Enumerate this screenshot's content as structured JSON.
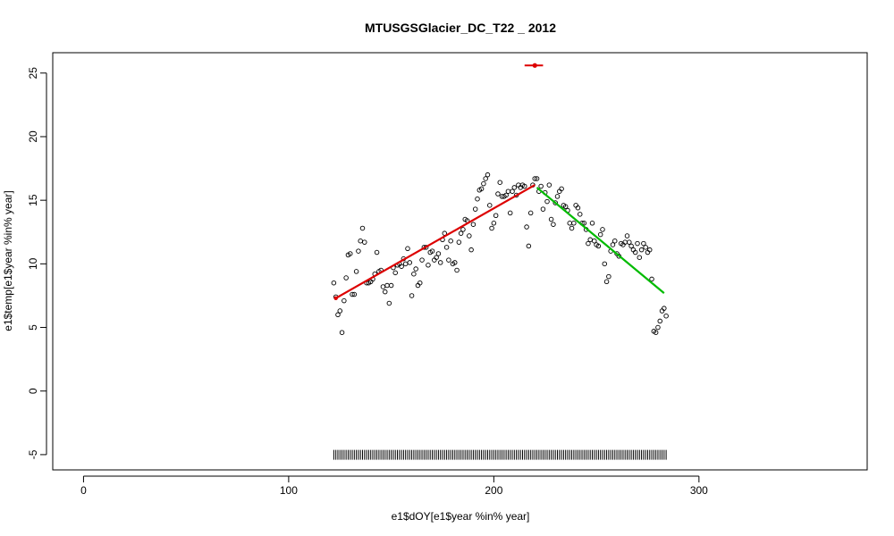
{
  "chart_data": {
    "type": "scatter",
    "title": "MTUSGSGlacier_DC_T22 _ 2012",
    "xlabel": "e1$dOY[e1$year %in% year]",
    "ylabel": "e1$temp[e1$year %in% year]",
    "xlim": [
      -15,
      382
    ],
    "ylim": [
      -6.2,
      26.6
    ],
    "x_ticks": [
      0,
      100,
      200,
      300
    ],
    "y_ticks": [
      -5,
      0,
      5,
      10,
      15,
      20,
      25
    ],
    "grid": false,
    "colors": {
      "points": "#000000",
      "fit_rising": "#dd0000",
      "fit_falling": "#00bb00",
      "peak_marker": "#dd0000",
      "rug": "#000000"
    },
    "series": [
      {
        "marker": "open-circle",
        "points": [
          [
            122,
            8.5
          ],
          [
            123,
            7.4
          ],
          [
            124,
            6.0
          ],
          [
            125,
            6.3
          ],
          [
            126,
            4.6
          ],
          [
            127,
            7.1
          ],
          [
            128,
            8.9
          ],
          [
            129,
            10.7
          ],
          [
            130,
            10.8
          ],
          [
            131,
            7.6
          ],
          [
            132,
            7.6
          ],
          [
            133,
            9.4
          ],
          [
            134,
            11.0
          ],
          [
            135,
            11.8
          ],
          [
            136,
            12.8
          ],
          [
            137,
            11.7
          ],
          [
            138,
            8.5
          ],
          [
            139,
            8.5
          ],
          [
            140,
            8.6
          ],
          [
            141,
            8.8
          ],
          [
            142,
            9.2
          ],
          [
            143,
            10.9
          ],
          [
            144,
            9.4
          ],
          [
            145,
            9.5
          ],
          [
            146,
            8.2
          ],
          [
            147,
            7.8
          ],
          [
            148,
            8.3
          ],
          [
            149,
            6.9
          ],
          [
            150,
            8.3
          ],
          [
            151,
            9.7
          ],
          [
            152,
            9.3
          ],
          [
            153,
            9.9
          ],
          [
            154,
            10.0
          ],
          [
            155,
            9.8
          ],
          [
            156,
            10.4
          ],
          [
            157,
            10.0
          ],
          [
            158,
            11.2
          ],
          [
            159,
            10.1
          ],
          [
            160,
            7.5
          ],
          [
            161,
            9.2
          ],
          [
            162,
            9.6
          ],
          [
            163,
            8.3
          ],
          [
            164,
            8.5
          ],
          [
            165,
            10.3
          ],
          [
            166,
            11.3
          ],
          [
            167,
            11.3
          ],
          [
            168,
            9.9
          ],
          [
            169,
            10.9
          ],
          [
            170,
            11.0
          ],
          [
            171,
            10.3
          ],
          [
            172,
            10.5
          ],
          [
            173,
            10.8
          ],
          [
            174,
            10.1
          ],
          [
            175,
            11.9
          ],
          [
            176,
            12.4
          ],
          [
            177,
            11.3
          ],
          [
            178,
            10.3
          ],
          [
            179,
            11.8
          ],
          [
            180,
            10.0
          ],
          [
            181,
            10.1
          ],
          [
            182,
            9.5
          ],
          [
            183,
            11.7
          ],
          [
            184,
            12.4
          ],
          [
            185,
            12.7
          ],
          [
            186,
            13.5
          ],
          [
            187,
            13.4
          ],
          [
            188,
            12.2
          ],
          [
            189,
            11.1
          ],
          [
            190,
            13.1
          ],
          [
            191,
            14.3
          ],
          [
            192,
            15.1
          ],
          [
            193,
            15.8
          ],
          [
            194,
            15.9
          ],
          [
            195,
            16.3
          ],
          [
            196,
            16.7
          ],
          [
            197,
            17.0
          ],
          [
            198,
            14.6
          ],
          [
            199,
            12.8
          ],
          [
            200,
            13.2
          ],
          [
            201,
            13.8
          ],
          [
            202,
            15.5
          ],
          [
            203,
            16.4
          ],
          [
            204,
            15.3
          ],
          [
            205,
            15.3
          ],
          [
            206,
            15.4
          ],
          [
            207,
            15.7
          ],
          [
            208,
            14.0
          ],
          [
            209,
            15.7
          ],
          [
            210,
            16.0
          ],
          [
            211,
            15.4
          ],
          [
            212,
            16.2
          ],
          [
            213,
            16.0
          ],
          [
            214,
            16.2
          ],
          [
            215,
            16.1
          ],
          [
            216,
            12.9
          ],
          [
            217,
            11.4
          ],
          [
            218,
            14.0
          ],
          [
            219,
            16.2
          ],
          [
            220,
            16.7
          ],
          [
            221,
            16.7
          ],
          [
            222,
            15.7
          ],
          [
            223,
            16.1
          ],
          [
            224,
            14.3
          ],
          [
            225,
            15.6
          ],
          [
            226,
            14.9
          ],
          [
            227,
            16.2
          ],
          [
            228,
            13.5
          ],
          [
            229,
            13.1
          ],
          [
            230,
            14.8
          ],
          [
            231,
            15.3
          ],
          [
            232,
            15.7
          ],
          [
            233,
            15.9
          ],
          [
            234,
            14.6
          ],
          [
            235,
            14.5
          ],
          [
            236,
            14.2
          ],
          [
            237,
            13.2
          ],
          [
            238,
            12.8
          ],
          [
            239,
            13.2
          ],
          [
            240,
            14.6
          ],
          [
            241,
            14.4
          ],
          [
            242,
            13.9
          ],
          [
            243,
            13.2
          ],
          [
            244,
            13.2
          ],
          [
            245,
            12.7
          ],
          [
            246,
            11.6
          ],
          [
            247,
            11.9
          ],
          [
            248,
            13.2
          ],
          [
            249,
            11.8
          ],
          [
            250,
            11.5
          ],
          [
            251,
            11.4
          ],
          [
            252,
            12.3
          ],
          [
            253,
            12.7
          ],
          [
            254,
            10.0
          ],
          [
            255,
            8.6
          ],
          [
            256,
            9.0
          ],
          [
            257,
            11.0
          ],
          [
            258,
            11.5
          ],
          [
            259,
            11.8
          ],
          [
            260,
            10.8
          ],
          [
            261,
            10.6
          ],
          [
            262,
            11.6
          ],
          [
            263,
            11.5
          ],
          [
            264,
            11.7
          ],
          [
            265,
            12.2
          ],
          [
            266,
            11.7
          ],
          [
            267,
            11.4
          ],
          [
            268,
            11.1
          ],
          [
            269,
            10.9
          ],
          [
            270,
            11.6
          ],
          [
            271,
            10.5
          ],
          [
            272,
            11.1
          ],
          [
            273,
            11.6
          ],
          [
            274,
            11.3
          ],
          [
            275,
            10.9
          ],
          [
            276,
            11.1
          ],
          [
            277,
            8.8
          ],
          [
            278,
            4.7
          ],
          [
            279,
            4.6
          ],
          [
            280,
            5.0
          ],
          [
            281,
            5.5
          ],
          [
            282,
            6.3
          ],
          [
            283,
            6.5
          ],
          [
            284,
            5.9
          ]
        ]
      }
    ],
    "fit_lines": [
      {
        "x": [
          123,
          220
        ],
        "y": [
          7.3,
          16.2
        ]
      },
      {
        "x": [
          221,
          283
        ],
        "y": [
          16.0,
          7.7
        ]
      }
    ],
    "peak_marker": {
      "x": 220,
      "y": 25.6,
      "xerr": [
        215,
        224
      ]
    },
    "rug": {
      "from": 122,
      "to": 284,
      "step": 1,
      "y": -5.4
    }
  }
}
